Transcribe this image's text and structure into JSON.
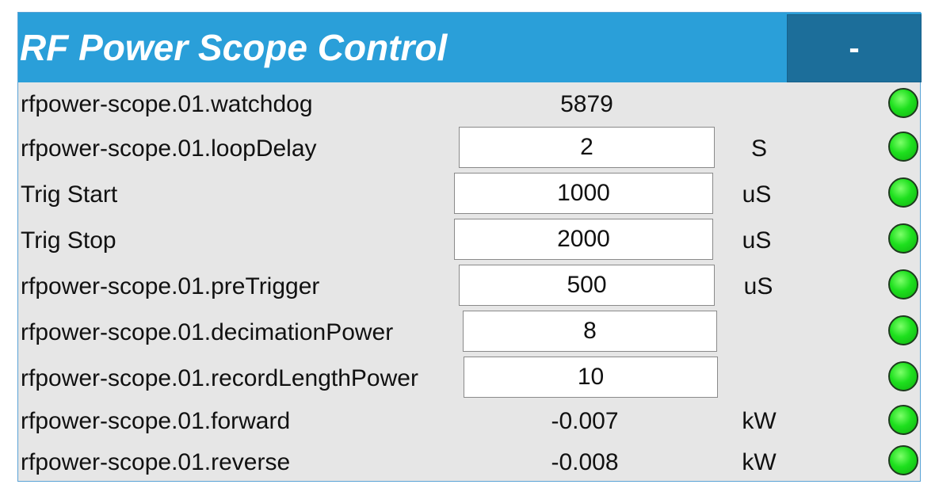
{
  "panel": {
    "title": "RF Power Scope Control",
    "collapse_label": "-"
  },
  "rows": [
    {
      "label": "rfpower-scope.01.watchdog",
      "value": "5879",
      "unit": "",
      "editable": false,
      "status": "green"
    },
    {
      "label": "rfpower-scope.01.loopDelay",
      "value": "2",
      "unit": "S",
      "editable": true,
      "status": "green"
    },
    {
      "label": "Trig Start",
      "value": "1000",
      "unit": "uS",
      "editable": true,
      "status": "green"
    },
    {
      "label": "Trig Stop",
      "value": "2000",
      "unit": "uS",
      "editable": true,
      "status": "green"
    },
    {
      "label": "rfpower-scope.01.preTrigger",
      "value": "500",
      "unit": "uS",
      "editable": true,
      "status": "green"
    },
    {
      "label": "rfpower-scope.01.decimationPower",
      "value": "8",
      "unit": "",
      "editable": true,
      "status": "green"
    },
    {
      "label": "rfpower-scope.01.recordLengthPower",
      "value": "10",
      "unit": "",
      "editable": true,
      "status": "green"
    },
    {
      "label": "rfpower-scope.01.forward",
      "value": "-0.007",
      "unit": "kW",
      "editable": false,
      "status": "green"
    },
    {
      "label": "rfpower-scope.01.reverse",
      "value": "-0.008",
      "unit": "kW",
      "editable": false,
      "status": "green"
    }
  ],
  "colors": {
    "header": "#2a9fd9",
    "button": "#1c6e9a",
    "panel_bg": "#e6e6e6",
    "status_ok": "#1ee01e"
  }
}
